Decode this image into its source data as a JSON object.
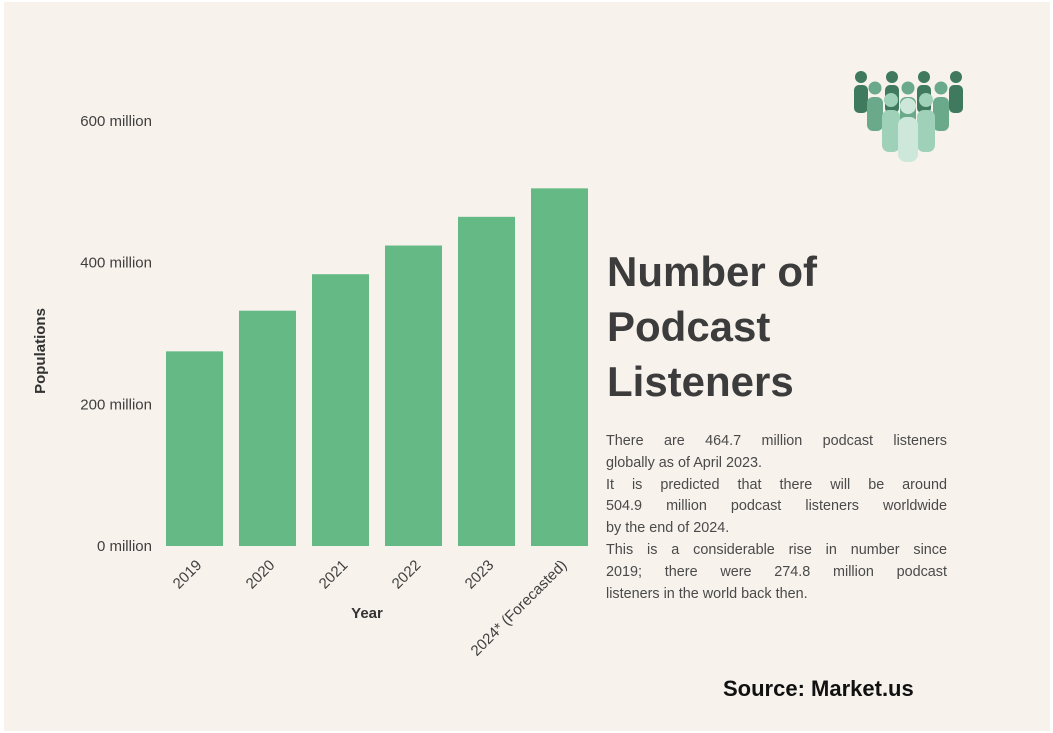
{
  "chart_data": {
    "type": "bar",
    "title": "Number of Podcast Listeners",
    "categories": [
      "2019",
      "2020",
      "2021",
      "2022",
      "2023",
      "2024* (Forecasted)"
    ],
    "values": [
      274.8,
      332.2,
      383.7,
      424.2,
      464.7,
      504.9
    ],
    "value_unit": "million",
    "xlabel": "Year",
    "ylabel": "Populations",
    "ylim": [
      0,
      600
    ],
    "yticks": [
      {
        "value": 0,
        "label": "0 million"
      },
      {
        "value": 200,
        "label": "200 million"
      },
      {
        "value": 400,
        "label": "400 million"
      },
      {
        "value": 600,
        "label": "600 million"
      }
    ],
    "grid": false,
    "bar_color": "#64b985"
  },
  "title_lines": [
    "Number of",
    "Podcast",
    "Listeners"
  ],
  "description_lines": [
    "There are 464.7 million podcast listeners",
    "globally as of April 2023.",
    "It is predicted that there will be around",
    "504.9 million podcast listeners worldwide",
    "by the end of 2024.",
    "This is a considerable rise in number since",
    "2019; there were 274.8 million podcast",
    "listeners in the world back then."
  ],
  "source": "Source: Market.us",
  "icon": "people-group-icon",
  "colors": {
    "background": "#f7f2ec",
    "bar": "#64b985",
    "icon_dark": "#3f7a5f",
    "icon_mid": "#6aa98a",
    "icon_light": "#9fd0b8",
    "icon_lightest": "#cde8da"
  }
}
